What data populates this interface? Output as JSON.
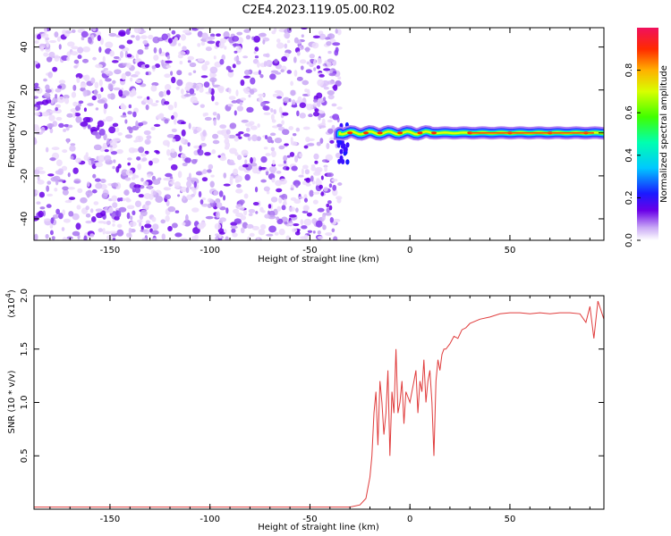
{
  "title": "C2E4.2023.119.05.00.R02",
  "chart_data": [
    {
      "type": "heatmap",
      "xlabel": "Height of straight line (km)",
      "ylabel": "Frequency (Hz)",
      "xlim": [
        -188,
        97
      ],
      "ylim": [
        -50,
        49
      ],
      "x_ticks": [
        -150,
        -100,
        -50,
        0,
        50
      ],
      "y_ticks": [
        -40,
        -20,
        0,
        20,
        40
      ],
      "colorbar": {
        "label": "Normalized spectral amplitude",
        "range": [
          0,
          1
        ],
        "ticks": [
          0.0,
          0.2,
          0.4,
          0.6,
          0.8
        ]
      },
      "regions": [
        {
          "description": "diffuse low-amplitude noise spanning all frequencies",
          "x_range": [
            -188,
            -35
          ],
          "amplitude": [
            0.0,
            0.25
          ]
        },
        {
          "description": "narrow band near 0 Hz",
          "x_range": [
            -35,
            97
          ],
          "frequency": 0,
          "amplitude": [
            0.3,
            1.0
          ]
        }
      ],
      "grid": false
    },
    {
      "type": "line",
      "xlabel": "Height of straight line (km)",
      "ylabel": "SNR (10 * v/v)",
      "y_multiplier": "(x10",
      "y_multiplier_exp": "4",
      "y_multiplier_close": ")",
      "xlim": [
        -188,
        97
      ],
      "ylim": [
        0,
        2.0
      ],
      "x_ticks": [
        -150,
        -100,
        -50,
        0,
        50
      ],
      "y_ticks": [
        0.5,
        1.0,
        1.5,
        2.0
      ],
      "color": "#e03c3c",
      "series": [
        {
          "x": [
            -188,
            -170,
            -150,
            -130,
            -110,
            -90,
            -70,
            -50,
            -30,
            -25,
            -22,
            -20,
            -19,
            -18,
            -17,
            -16,
            -15,
            -14,
            -13,
            -12,
            -11,
            -10,
            -9,
            -8,
            -7,
            -6,
            -5,
            -4,
            -3,
            -2,
            -1,
            0,
            1,
            2,
            3,
            4,
            5,
            6,
            7,
            8,
            9,
            10,
            11,
            12,
            13,
            14,
            15,
            16,
            17,
            18,
            20,
            22,
            24,
            26,
            28,
            30,
            35,
            40,
            45,
            50,
            55,
            60,
            65,
            70,
            75,
            80,
            85,
            88,
            90,
            92,
            94,
            97
          ],
          "y": [
            0.02,
            0.02,
            0.02,
            0.02,
            0.02,
            0.02,
            0.02,
            0.02,
            0.02,
            0.04,
            0.1,
            0.3,
            0.5,
            0.9,
            1.1,
            0.6,
            1.2,
            1.0,
            0.7,
            0.9,
            1.3,
            0.5,
            1.1,
            0.9,
            1.5,
            0.9,
            1.0,
            1.2,
            0.8,
            1.1,
            1.05,
            1.0,
            1.1,
            1.2,
            1.3,
            0.9,
            1.2,
            1.1,
            1.4,
            1.0,
            1.2,
            1.3,
            1.0,
            0.5,
            1.2,
            1.4,
            1.3,
            1.45,
            1.5,
            1.5,
            1.55,
            1.62,
            1.6,
            1.68,
            1.7,
            1.74,
            1.78,
            1.8,
            1.83,
            1.84,
            1.84,
            1.83,
            1.84,
            1.83,
            1.84,
            1.84,
            1.83,
            1.75,
            1.9,
            1.6,
            1.95,
            1.78
          ]
        }
      ],
      "grid": false
    }
  ]
}
